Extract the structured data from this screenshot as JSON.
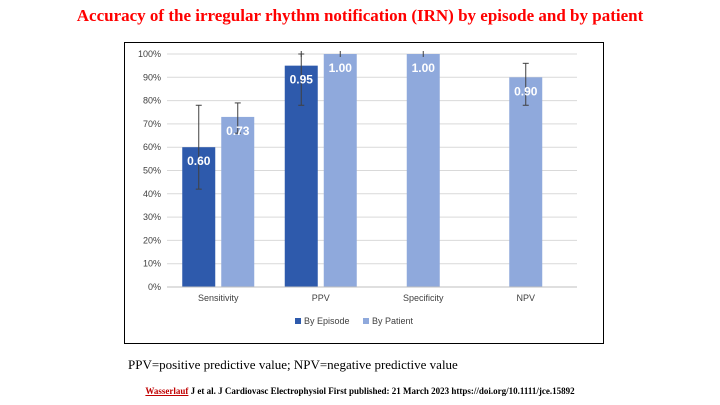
{
  "title": "Accuracy of the irregular rhythm notification (IRN) by episode and by patient",
  "footnote": "PPV=positive predictive value; NPV=negative predictive value",
  "citation": {
    "author": "Wasserlauf",
    "rest": " J et al. J Cardiovasc Electrophysiol First published: 21 March 2023 https://doi.org/10.1111/jce.15892"
  },
  "colors": {
    "title": "#ff0000",
    "by_episode": "#2e5aac",
    "by_patient": "#8fa9dc",
    "gridline": "#d9d9d9",
    "error_bar": "#404040"
  },
  "chart_data": {
    "type": "bar",
    "categories": [
      "Sensitivity",
      "PPV",
      "Specificity",
      "NPV"
    ],
    "ylim": [
      0,
      1
    ],
    "yticks": [
      "0%",
      "10%",
      "20%",
      "30%",
      "40%",
      "50%",
      "60%",
      "70%",
      "80%",
      "90%",
      "100%"
    ],
    "grid": true,
    "legend_position": "bottom",
    "series": [
      {
        "name": "By Episode",
        "values": [
          0.6,
          0.95,
          null,
          null
        ],
        "labels": [
          "0.60",
          "0.95",
          "",
          ""
        ],
        "error_low": [
          0.42,
          0.78,
          null,
          null
        ],
        "error_high": [
          0.78,
          1.0,
          null,
          null
        ]
      },
      {
        "name": "By Patient",
        "values": [
          0.73,
          1.0,
          1.0,
          0.9
        ],
        "labels": [
          "0.73",
          "1.00",
          "1.00",
          "0.90"
        ],
        "error_low": [
          0.66,
          1.0,
          1.0,
          0.78
        ],
        "error_high": [
          0.79,
          1.0,
          1.0,
          0.96
        ]
      }
    ]
  }
}
